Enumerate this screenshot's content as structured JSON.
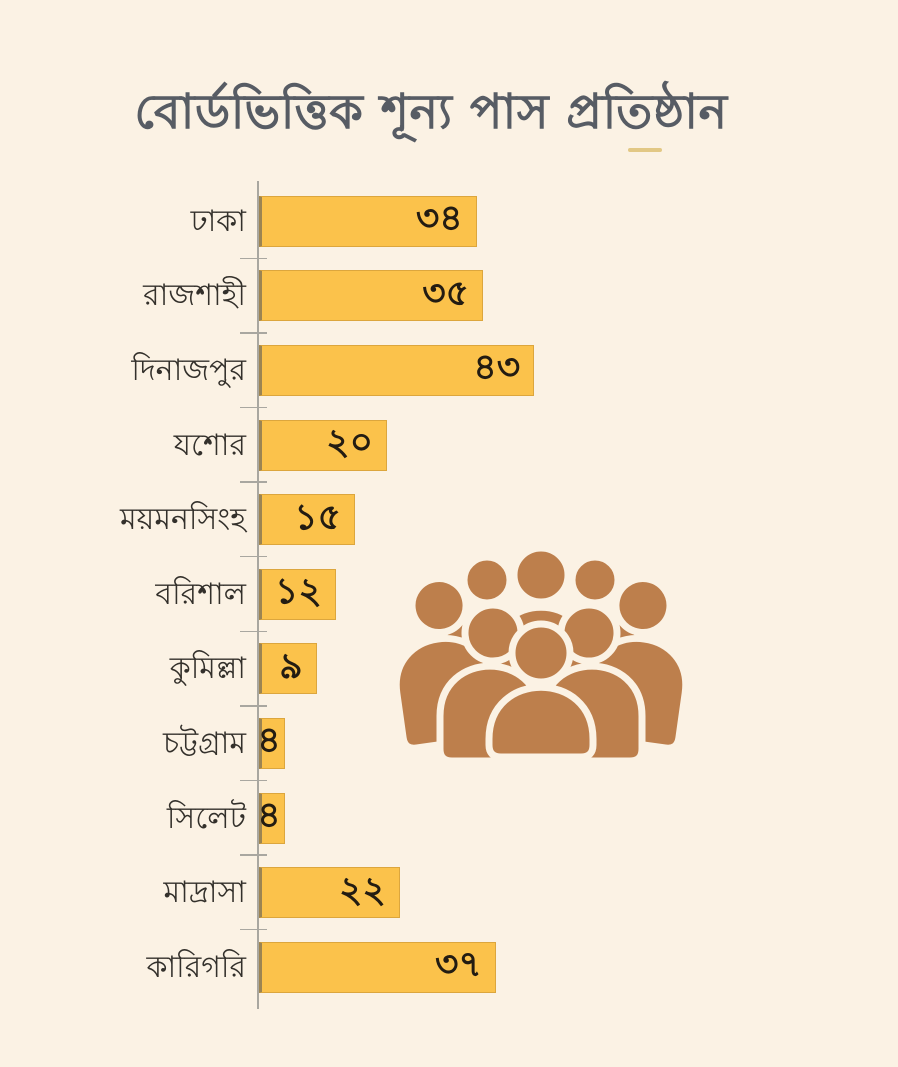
{
  "title": "বোর্ডভিত্তিক শূন্য পাস প্রতিষ্ঠান",
  "colors": {
    "background": "#fbf2e4",
    "bar": "#fbc24b",
    "bar_edge": "#9c8452",
    "bar_outline": "#dca63d",
    "value_text": "#231c12",
    "label_text": "#33302b",
    "title_text": "#575c64",
    "axis": "#a9a7a0",
    "crowd_icon": "#bd7f4c"
  },
  "chart_data": {
    "type": "bar",
    "orientation": "horizontal",
    "title": "বোর্ডভিত্তিক শূন্য পাস প্রতিষ্ঠান",
    "categories": [
      "ঢাকা",
      "রাজশাহী",
      "দিনাজপুর",
      "যশোর",
      "ময়মনসিংহ",
      "বরিশাল",
      "কুমিল্লা",
      "চট্টগ্রাম",
      "সিলেট",
      "মাদ্রাসা",
      "কারিগরি"
    ],
    "values": [
      34,
      35,
      43,
      20,
      15,
      12,
      9,
      4,
      4,
      22,
      37
    ],
    "values_display": [
      "৩৪",
      "৩৫",
      "৪৩",
      "২০",
      "১৫",
      "১২",
      "৯",
      "৪",
      "৪",
      "২২",
      "৩৭"
    ],
    "xlabel": "",
    "ylabel": "",
    "xlim": [
      0,
      43
    ],
    "grid": false,
    "legend": false,
    "value_labels": "inside-bar-right",
    "icon": "crowd-icon"
  }
}
